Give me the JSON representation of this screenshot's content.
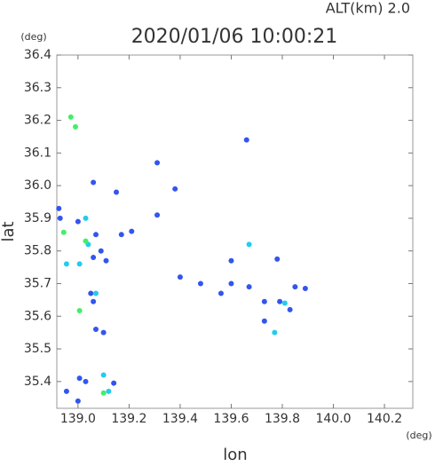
{
  "chart_data": {
    "type": "scatter",
    "title": "2020/01/06 10:00:21",
    "subtitle": "ALT(km)  2.0",
    "y_unit": "(deg)",
    "x_unit": "(deg)",
    "xlabel": "lon",
    "ylabel": "lat",
    "xlim": [
      138.917,
      140.311
    ],
    "ylim": [
      35.318,
      36.4
    ],
    "xticks": [
      {
        "value": 139.0,
        "label": "139.0"
      },
      139.2,
      139.4,
      139.6,
      139.8,
      {
        "value": 140.0,
        "label": "140.0"
      },
      140.2
    ],
    "yticks": [
      35.4,
      35.5,
      35.6,
      35.7,
      35.8,
      35.9,
      {
        "value": 36.0,
        "label": "36.0"
      },
      36.1,
      36.2,
      36.3,
      36.4
    ],
    "grid": false,
    "series": [
      {
        "color": "#3355ee",
        "x": [
          138.925,
          138.93,
          139.0,
          139.06,
          139.15,
          139.07,
          139.06,
          139.11,
          139.09,
          139.05,
          139.06,
          139.07,
          139.1,
          139.006,
          139.03,
          138.955,
          139.0,
          139.14,
          139.31,
          139.17,
          139.21,
          139.66,
          139.31,
          139.38,
          139.48,
          139.4,
          139.6,
          139.67,
          139.73,
          139.73,
          139.78,
          139.85,
          139.89,
          139.83,
          139.79,
          139.56,
          139.6
        ],
        "values": [
          35.93,
          35.9,
          35.89,
          36.01,
          35.98,
          35.85,
          35.78,
          35.77,
          35.8,
          35.67,
          35.645,
          35.56,
          35.55,
          35.41,
          35.4,
          35.37,
          35.34,
          35.395,
          35.91,
          35.85,
          35.86,
          36.14,
          36.07,
          35.99,
          35.7,
          35.72,
          35.7,
          35.69,
          35.645,
          35.585,
          35.775,
          35.69,
          35.685,
          35.62,
          35.645,
          35.67,
          35.77
        ]
      },
      {
        "color": "#22ccee",
        "x": [
          138.955,
          139.006,
          139.03,
          139.04,
          139.12,
          139.1,
          139.67,
          139.77,
          139.81,
          139.07
        ],
        "values": [
          35.76,
          35.76,
          35.9,
          35.82,
          35.37,
          35.42,
          35.82,
          35.55,
          35.64,
          35.67
        ]
      },
      {
        "color": "#44ee66",
        "x": [
          138.972,
          138.99,
          138.944,
          139.03,
          139.1,
          139.006
        ],
        "values": [
          36.21,
          36.18,
          35.857,
          35.83,
          35.365,
          35.617
        ]
      }
    ]
  }
}
